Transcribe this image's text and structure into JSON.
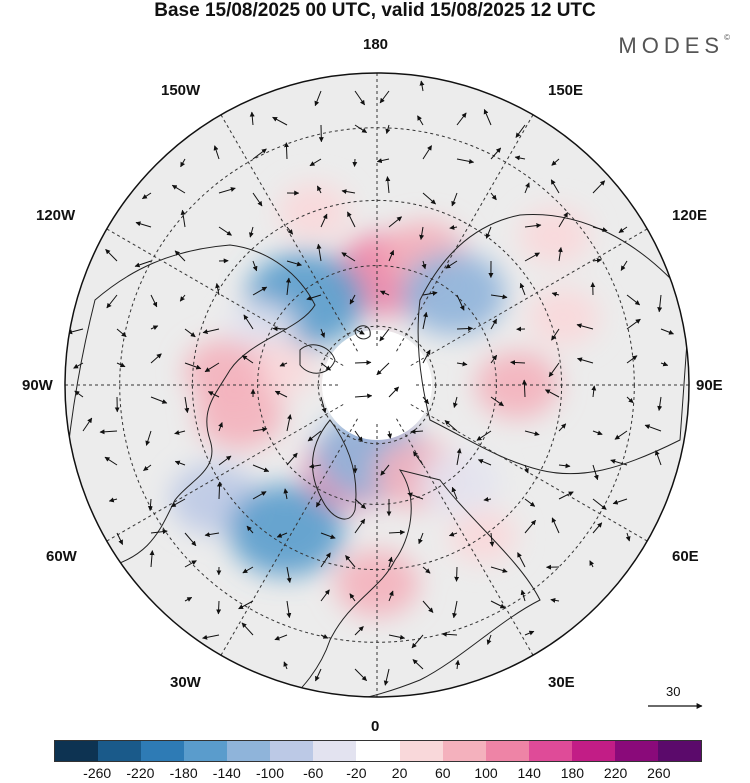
{
  "title": "Base 15/08/2025 00 UTC, valid 15/08/2025 12 UTC",
  "brand": {
    "name": "MODES",
    "mark": "©"
  },
  "map": {
    "projection": "north polar stereographic",
    "longitude_labels": {
      "top": "180",
      "bottom": "0",
      "left": "90W",
      "right": "90E",
      "upper_left_1": "150W",
      "upper_left_2": "120W",
      "upper_right_1": "150E",
      "upper_right_2": "120E",
      "lower_left_1": "60W",
      "lower_left_2": "30W",
      "lower_right_1": "60E",
      "lower_right_2": "30E"
    },
    "anomaly_cells": [
      {
        "lon": 175,
        "lat": 62,
        "value": 120
      },
      {
        "lon": 160,
        "lat": 55,
        "value": 60
      },
      {
        "lon": -160,
        "lat": 45,
        "value": 40
      },
      {
        "lon": -140,
        "lat": 62,
        "value": -160
      },
      {
        "lon": -115,
        "lat": 58,
        "value": -40
      },
      {
        "lon": -100,
        "lat": 65,
        "value": 40
      },
      {
        "lon": -95,
        "lat": 52,
        "value": 60
      },
      {
        "lon": -78,
        "lat": 55,
        "value": 80
      },
      {
        "lon": -55,
        "lat": 42,
        "value": -80
      },
      {
        "lon": -32,
        "lat": 48,
        "value": -150
      },
      {
        "lon": -15,
        "lat": 68,
        "value": 110
      },
      {
        "lon": 0,
        "lat": 42,
        "value": 70
      },
      {
        "lon": -5,
        "lat": 72,
        "value": -140
      },
      {
        "lon": 25,
        "lat": 65,
        "value": 80
      },
      {
        "lon": 35,
        "lat": 45,
        "value": 30
      },
      {
        "lon": 40,
        "lat": 58,
        "value": -60
      },
      {
        "lon": 90,
        "lat": 55,
        "value": 70
      },
      {
        "lon": 140,
        "lat": 60,
        "value": -120
      },
      {
        "lon": 110,
        "lat": 42,
        "value": 40
      },
      {
        "lon": 130,
        "lat": 35,
        "value": 40
      }
    ]
  },
  "reference_vector": {
    "label": "30"
  },
  "colorbar": {
    "ticks": [
      "-260",
      "-220",
      "-180",
      "-140",
      "-100",
      "-60",
      "-20",
      "20",
      "60",
      "100",
      "140",
      "180",
      "220",
      "260"
    ],
    "colors": [
      "#0d3352",
      "#1a5a8a",
      "#2e7bb5",
      "#5a9ccc",
      "#8fb4da",
      "#bcc9e6",
      "#e3e3f0",
      "#ffffff",
      "#f9d8da",
      "#f4b1bd",
      "#ee84a6",
      "#df4b98",
      "#c21d86",
      "#8a0a7a",
      "#5b0a6b"
    ]
  }
}
